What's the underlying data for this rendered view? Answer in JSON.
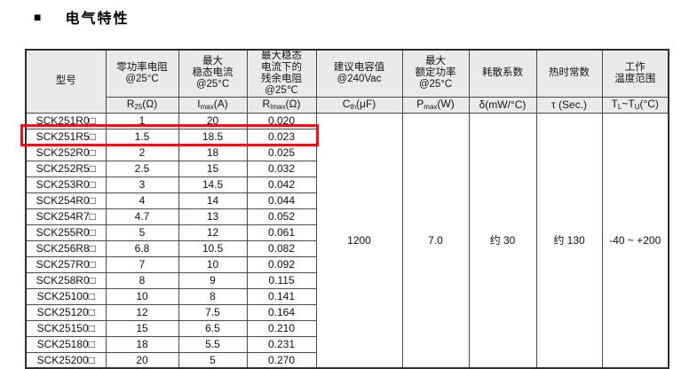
{
  "title": {
    "bullet": "■",
    "text": "电气特性"
  },
  "colors": {
    "highlight_red": "#e8131a",
    "header_bg": "#eaeaea",
    "border": "#4a4a4a",
    "text": "#141414"
  },
  "table": {
    "model_header": "型号",
    "group_headers": [
      {
        "label": "零功率电阻\n@25°C"
      },
      {
        "label": "最大\n稳态电流\n@25°C"
      },
      {
        "label": "最大稳态\n电流下的\n残余电阻\n@25℃"
      },
      {
        "label": "建议电容值\n@240Vac"
      },
      {
        "label": "最大\n额定功率\n@25°C"
      },
      {
        "label": "耗散系数"
      },
      {
        "label": "热时常数"
      },
      {
        "label": "工作\n温度范围"
      }
    ],
    "unit_headers": [
      {
        "pre": "R",
        "sub": "25",
        "post": "(Ω)"
      },
      {
        "pre": "I",
        "sub": "max",
        "post": "(A)"
      },
      {
        "pre": "R",
        "sub": "Imax",
        "post": "(Ω)"
      },
      {
        "pre": "C",
        "sub": "th",
        "post": "(μF)"
      },
      {
        "pre": "P",
        "sub": "max",
        "post": "(W)"
      },
      {
        "pre": "δ(mW/°C)"
      },
      {
        "pre": "τ (Sec.)"
      },
      {
        "pre": "T",
        "sub": "L",
        "mid": "~T",
        "sub2": "U",
        "post": "(°C)"
      }
    ],
    "rows": [
      {
        "model": "SCK251R0□",
        "r25": "1",
        "imax": "20",
        "rlmax": "0.020"
      },
      {
        "model": "SCK251R5□",
        "r25": "1.5",
        "imax": "18.5",
        "rlmax": "0.023"
      },
      {
        "model": "SCK252R0□",
        "r25": "2",
        "imax": "18",
        "rlmax": "0.025"
      },
      {
        "model": "SCK252R5□",
        "r25": "2.5",
        "imax": "15",
        "rlmax": "0.032"
      },
      {
        "model": "SCK253R0□",
        "r25": "3",
        "imax": "14.5",
        "rlmax": "0.042"
      },
      {
        "model": "SCK254R0□",
        "r25": "4",
        "imax": "14",
        "rlmax": "0.044"
      },
      {
        "model": "SCK254R7□",
        "r25": "4.7",
        "imax": "13",
        "rlmax": "0.052"
      },
      {
        "model": "SCK255R0□",
        "r25": "5",
        "imax": "12",
        "rlmax": "0.061"
      },
      {
        "model": "SCK256R8□",
        "r25": "6.8",
        "imax": "10.5",
        "rlmax": "0.082"
      },
      {
        "model": "SCK257R0□",
        "r25": "7",
        "imax": "10",
        "rlmax": "0.092"
      },
      {
        "model": "SCK258R0□",
        "r25": "8",
        "imax": "9",
        "rlmax": "0.115"
      },
      {
        "model": "SCK25100□",
        "r25": "10",
        "imax": "8",
        "rlmax": "0.141"
      },
      {
        "model": "SCK25120□",
        "r25": "12",
        "imax": "7.5",
        "rlmax": "0.164"
      },
      {
        "model": "SCK25150□",
        "r25": "15",
        "imax": "6.5",
        "rlmax": "0.210"
      },
      {
        "model": "SCK25180□",
        "r25": "18",
        "imax": "5.5",
        "rlmax": "0.231"
      },
      {
        "model": "SCK25200□",
        "r25": "20",
        "imax": "5",
        "rlmax": "0.270"
      }
    ],
    "merged": {
      "cth": "1200",
      "pmax": "7.0",
      "delta": "约 30",
      "tau": "约 130",
      "temp_range": "-40 ~ +200"
    },
    "highlighted_model": "SCK251R5□",
    "highlight_row_index": 1
  }
}
